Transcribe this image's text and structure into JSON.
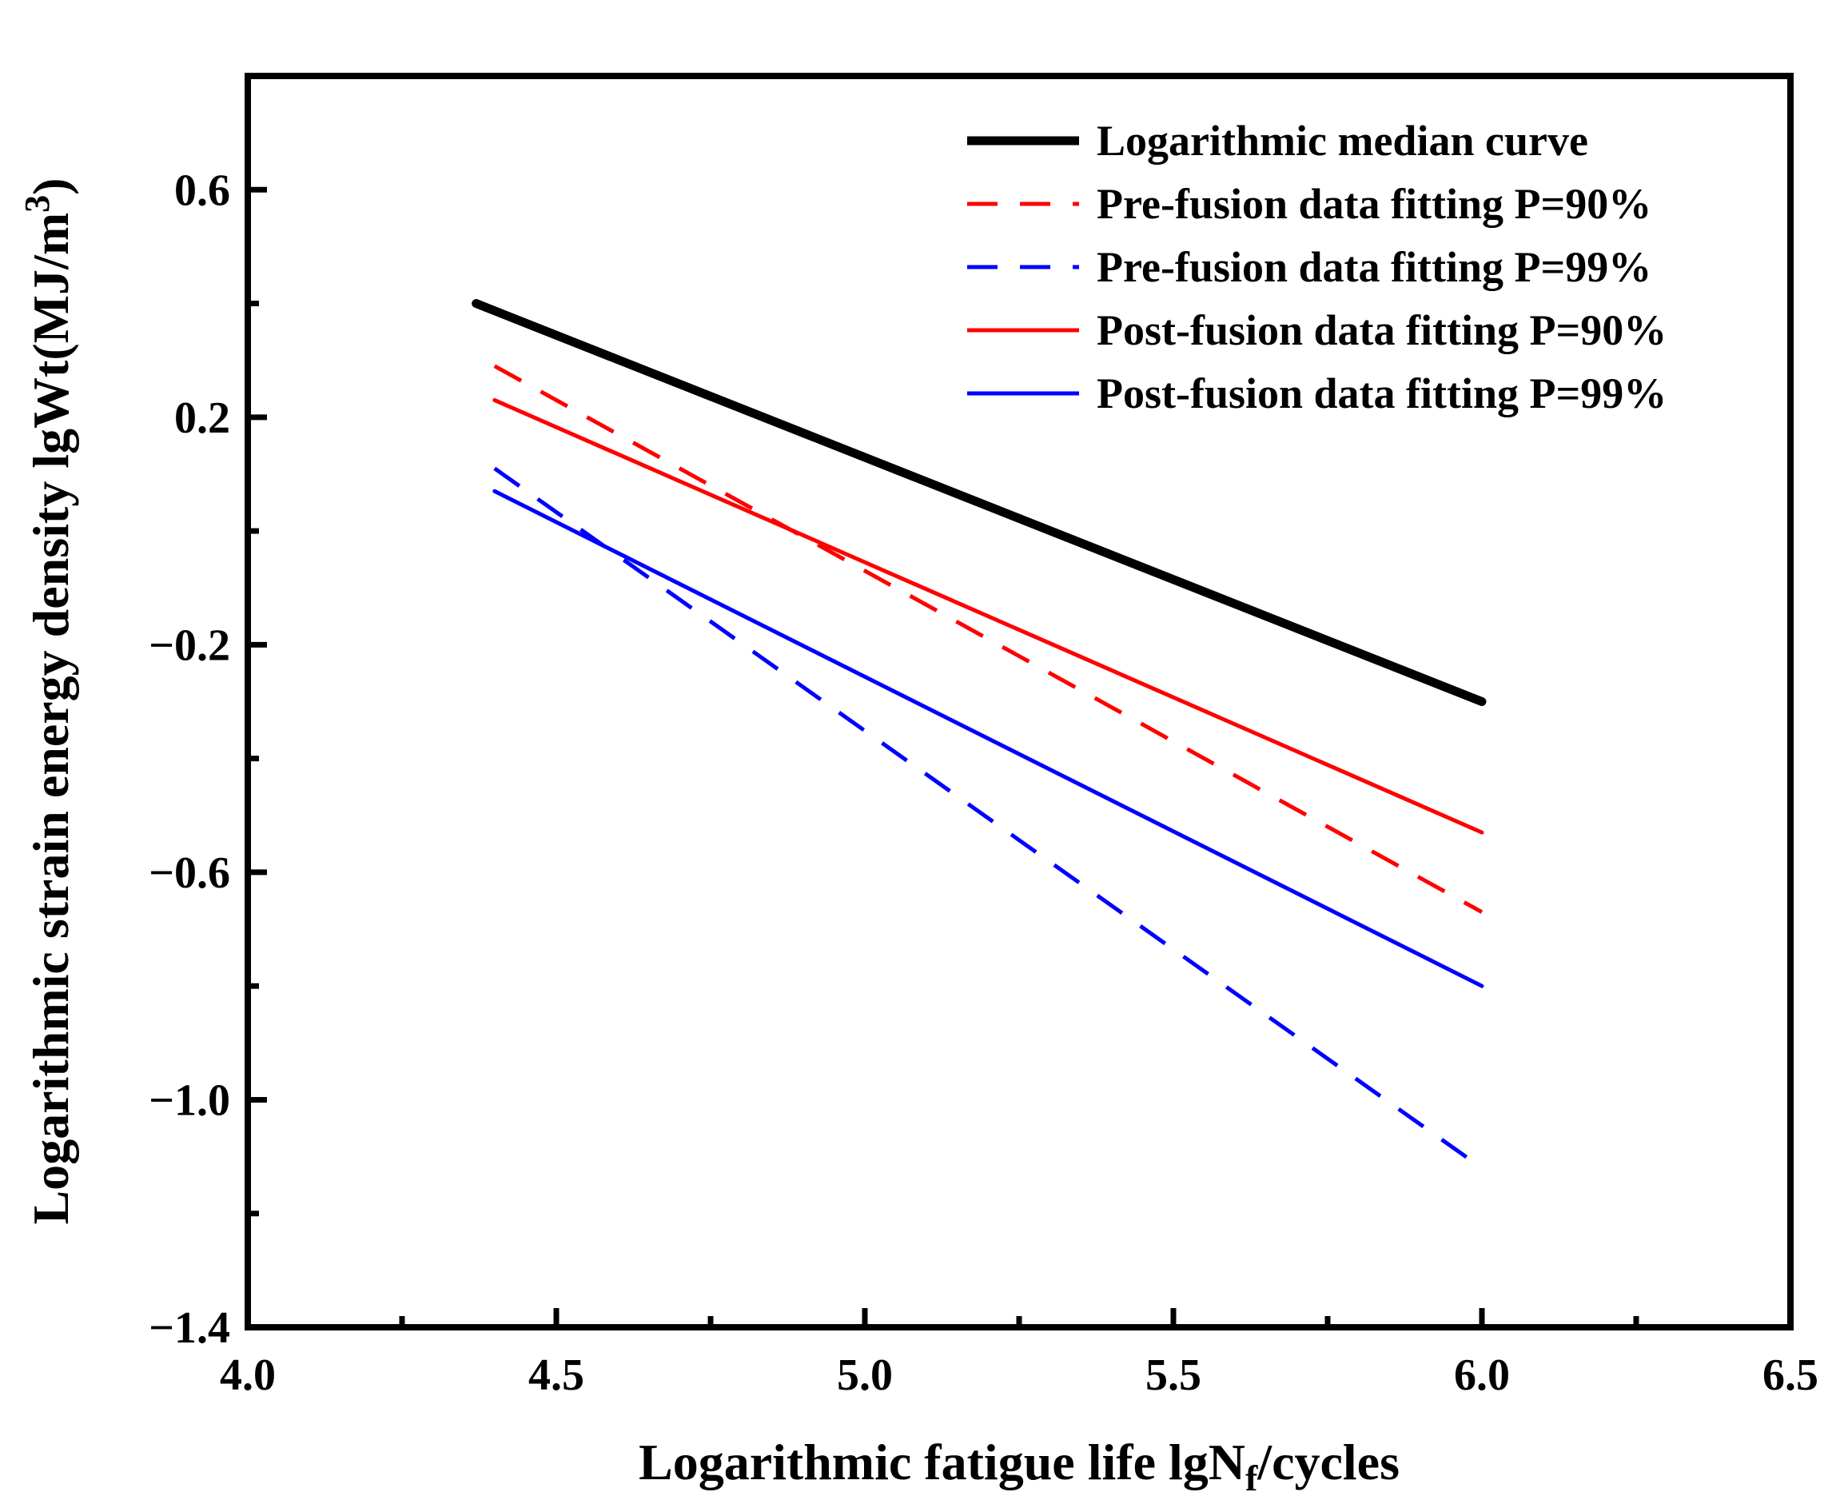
{
  "chart_data": {
    "type": "line",
    "title": "",
    "xlabel": {
      "prefix": "Logarithmic fatigue life  lgN",
      "sub": "f",
      "suffix": "/cycles"
    },
    "ylabel": {
      "prefix": "Logarithmic strain energy density  lgWt(MJ/m",
      "sup": "3",
      "suffix": ")"
    },
    "xlim": [
      4.0,
      6.5
    ],
    "ylim": [
      -1.4,
      0.8
    ],
    "xticks": [
      4.0,
      4.5,
      5.0,
      5.5,
      6.0,
      6.5
    ],
    "xtick_labels": [
      "4.0",
      "4.5",
      "5.0",
      "5.5",
      "6.0",
      "6.5"
    ],
    "yticks": [
      -1.4,
      -1.0,
      -0.6,
      -0.2,
      0.2,
      0.6
    ],
    "ytick_labels": [
      "−1.4",
      "−1.0",
      "−0.6",
      "−0.2",
      "0.2",
      "0.6"
    ],
    "x_minor_ticks": [
      4.25,
      4.75,
      5.25,
      5.75,
      6.25
    ],
    "y_minor_ticks": [
      -1.2,
      -0.8,
      -0.4,
      0.0,
      0.4
    ],
    "grid": false,
    "legend_position": "top-right",
    "series": [
      {
        "name": "Logarithmic median curve",
        "color": "#000000",
        "style": "solid",
        "weight": "thick",
        "x": [
          4.37,
          6.0
        ],
        "y": [
          0.4,
          -0.3
        ]
      },
      {
        "name": "Pre-fusion data fitting P=90%",
        "color": "#ff0000",
        "style": "dashed",
        "weight": "normal",
        "x": [
          4.4,
          6.0
        ],
        "y": [
          0.29,
          -0.67
        ]
      },
      {
        "name": "Pre-fusion data fitting P=99%",
        "color": "#0000ff",
        "style": "dashed",
        "weight": "normal",
        "x": [
          4.4,
          6.0
        ],
        "y": [
          0.11,
          -1.12
        ]
      },
      {
        "name": "Post-fusion data fitting P=90%",
        "color": "#ff0000",
        "style": "solid",
        "weight": "normal",
        "x": [
          4.4,
          6.0
        ],
        "y": [
          0.23,
          -0.53
        ]
      },
      {
        "name": "Post-fusion data fitting P=99%",
        "color": "#0000ff",
        "style": "solid",
        "weight": "normal",
        "x": [
          4.4,
          6.0
        ],
        "y": [
          0.07,
          -0.8
        ]
      }
    ]
  }
}
